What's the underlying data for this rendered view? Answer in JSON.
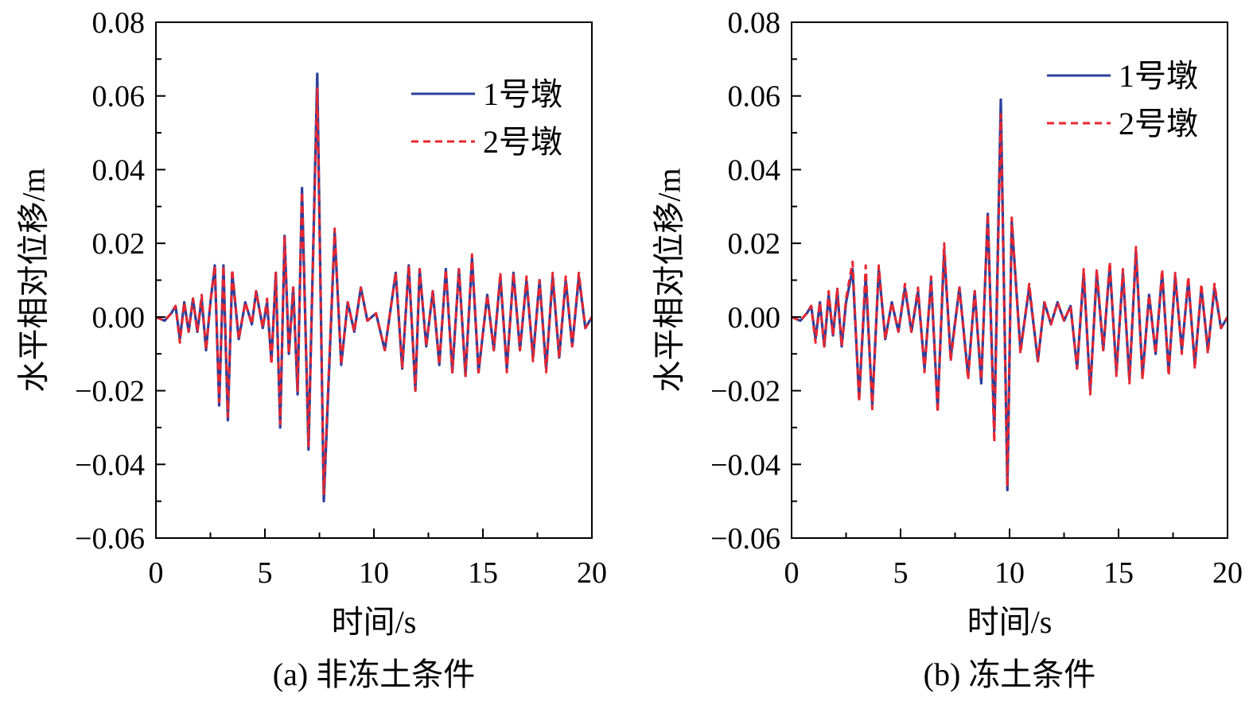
{
  "figure": {
    "series_colors": {
      "pier1": "#2b3f9c",
      "pier2": "#e8262f"
    }
  },
  "chart_data": [
    {
      "type": "line",
      "caption": "(a) 非冻土条件",
      "xlabel": "时间/s",
      "ylabel": "水平相对位移/m",
      "xlim": [
        0,
        20
      ],
      "ylim": [
        -0.06,
        0.08
      ],
      "xticks": [
        0,
        5,
        10,
        15,
        20
      ],
      "xtick_labels": [
        "0",
        "5",
        "10",
        "15",
        "20"
      ],
      "yticks": [
        -0.06,
        -0.04,
        -0.02,
        0.0,
        0.02,
        0.04,
        0.06,
        0.08
      ],
      "ytick_labels": [
        "−0.06",
        "−0.04",
        "−0.02",
        "0.00",
        "0.02",
        "0.04",
        "0.06",
        "0.08"
      ],
      "legend": {
        "position": "top-right",
        "entries": [
          "1号墩",
          "2号墩"
        ]
      },
      "series": [
        {
          "name": "1号墩",
          "style": "solid",
          "color": "#2b3f9c",
          "x": [
            0,
            0.4,
            0.7,
            0.9,
            1.1,
            1.3,
            1.5,
            1.7,
            1.9,
            2.1,
            2.3,
            2.5,
            2.7,
            2.9,
            3.1,
            3.3,
            3.5,
            3.8,
            4.1,
            4.4,
            4.6,
            4.9,
            5.1,
            5.3,
            5.5,
            5.7,
            5.9,
            6.1,
            6.3,
            6.5,
            6.7,
            7.0,
            7.4,
            7.7,
            8.2,
            8.5,
            8.8,
            9.1,
            9.4,
            9.7,
            10.1,
            10.5,
            11.0,
            11.3,
            11.6,
            11.9,
            12.1,
            12.4,
            12.7,
            13.0,
            13.3,
            13.6,
            13.9,
            14.2,
            14.5,
            14.8,
            15.2,
            15.5,
            15.8,
            16.1,
            16.4,
            16.7,
            17.0,
            17.3,
            17.6,
            17.9,
            18.2,
            18.5,
            18.8,
            19.1,
            19.4,
            19.7,
            20.0
          ],
          "y": [
            0,
            -0.001,
            0.001,
            0.003,
            -0.006,
            0.004,
            -0.004,
            0.005,
            -0.004,
            0.005,
            -0.009,
            0.004,
            0.014,
            -0.024,
            0.014,
            -0.028,
            0.012,
            -0.006,
            0.004,
            -0.002,
            0.007,
            -0.003,
            0.004,
            -0.012,
            0.012,
            -0.03,
            0.022,
            -0.01,
            0.008,
            -0.021,
            0.035,
            -0.036,
            0.066,
            -0.05,
            0.023,
            -0.013,
            0.004,
            -0.004,
            0.008,
            -0.001,
            0.001,
            -0.009,
            0.012,
            -0.014,
            0.014,
            -0.02,
            0.013,
            -0.008,
            0.007,
            -0.013,
            0.013,
            -0.015,
            0.013,
            -0.016,
            0.016,
            -0.015,
            0.006,
            -0.009,
            0.011,
            -0.014,
            0.012,
            -0.009,
            0.01,
            -0.011,
            0.01,
            -0.014,
            0.011,
            -0.011,
            0.01,
            -0.008,
            0.011,
            -0.003,
            0
          ],
          "peak_max": 0.066,
          "peak_min": -0.05
        },
        {
          "name": "2号墩",
          "style": "dashed",
          "color": "#e8262f",
          "x": [
            0,
            0.4,
            0.7,
            0.9,
            1.1,
            1.3,
            1.5,
            1.7,
            1.9,
            2.1,
            2.3,
            2.5,
            2.7,
            2.9,
            3.1,
            3.3,
            3.5,
            3.8,
            4.1,
            4.4,
            4.6,
            4.9,
            5.1,
            5.3,
            5.5,
            5.7,
            5.9,
            6.1,
            6.3,
            6.5,
            6.7,
            7.0,
            7.4,
            7.7,
            8.2,
            8.5,
            8.8,
            9.1,
            9.4,
            9.7,
            10.1,
            10.5,
            11.0,
            11.3,
            11.6,
            11.9,
            12.1,
            12.4,
            12.7,
            13.0,
            13.3,
            13.6,
            13.9,
            14.2,
            14.5,
            14.8,
            15.2,
            15.5,
            15.8,
            16.1,
            16.4,
            16.7,
            17.0,
            17.3,
            17.6,
            17.9,
            18.2,
            18.5,
            18.8,
            19.1,
            19.4,
            19.7,
            20.0
          ],
          "y": [
            0,
            -0.001,
            0.001,
            0.003,
            -0.007,
            0.004,
            -0.004,
            0.005,
            -0.004,
            0.006,
            -0.009,
            0.004,
            0.014,
            -0.023,
            0.014,
            -0.027,
            0.013,
            -0.006,
            0.004,
            -0.002,
            0.007,
            -0.003,
            0.005,
            -0.013,
            0.012,
            -0.029,
            0.022,
            -0.01,
            0.008,
            -0.02,
            0.034,
            -0.035,
            0.062,
            -0.048,
            0.024,
            -0.013,
            0.004,
            -0.004,
            0.008,
            -0.001,
            0.001,
            -0.009,
            0.012,
            -0.014,
            0.014,
            -0.02,
            0.013,
            -0.008,
            0.007,
            -0.013,
            0.013,
            -0.015,
            0.013,
            -0.016,
            0.017,
            -0.015,
            0.006,
            -0.009,
            0.012,
            -0.015,
            0.012,
            -0.009,
            0.011,
            -0.012,
            0.01,
            -0.015,
            0.012,
            -0.011,
            0.011,
            -0.008,
            0.012,
            -0.003,
            0
          ],
          "peak_max": 0.062,
          "peak_min": -0.048
        }
      ]
    },
    {
      "type": "line",
      "caption": "(b) 冻土条件",
      "xlabel": "时间/s",
      "ylabel": "水平相对位移/m",
      "xlim": [
        0,
        20
      ],
      "ylim": [
        -0.06,
        0.08
      ],
      "xticks": [
        0,
        5,
        10,
        15,
        20
      ],
      "xtick_labels": [
        "0",
        "5",
        "10",
        "15",
        "20"
      ],
      "yticks": [
        -0.06,
        -0.04,
        -0.02,
        0.0,
        0.02,
        0.04,
        0.06,
        0.08
      ],
      "ytick_labels": [
        "−0.06",
        "−0.04",
        "−0.02",
        "0.00",
        "0.02",
        "0.04",
        "0.06",
        "0.08"
      ],
      "legend": {
        "position": "top-right",
        "entries": [
          "1号墩",
          "2号墩"
        ]
      },
      "series": [
        {
          "name": "1号墩",
          "style": "solid",
          "color": "#2b3f9c",
          "x": [
            0,
            0.4,
            0.7,
            0.9,
            1.1,
            1.3,
            1.5,
            1.7,
            1.9,
            2.1,
            2.3,
            2.5,
            2.8,
            3.1,
            3.4,
            3.7,
            4.0,
            4.3,
            4.6,
            4.9,
            5.2,
            5.5,
            5.8,
            6.1,
            6.4,
            6.7,
            7.0,
            7.3,
            7.7,
            8.1,
            8.4,
            8.7,
            9.0,
            9.3,
            9.6,
            9.9,
            10.1,
            10.5,
            10.9,
            11.3,
            11.6,
            11.9,
            12.2,
            12.5,
            12.8,
            13.1,
            13.4,
            13.7,
            14.0,
            14.3,
            14.6,
            14.9,
            15.2,
            15.5,
            15.8,
            16.1,
            16.4,
            16.7,
            17.0,
            17.3,
            17.6,
            17.9,
            18.2,
            18.5,
            18.8,
            19.1,
            19.4,
            19.7,
            20.0
          ],
          "y": [
            0,
            -0.001,
            0.001,
            0.003,
            -0.006,
            0.004,
            -0.008,
            0.006,
            -0.005,
            0.007,
            -0.008,
            0.004,
            0.013,
            -0.022,
            0.011,
            -0.024,
            0.013,
            -0.006,
            0.004,
            -0.004,
            0.008,
            -0.004,
            0.007,
            -0.014,
            0.01,
            -0.025,
            0.018,
            -0.011,
            0.008,
            -0.016,
            0.007,
            -0.018,
            0.028,
            -0.031,
            0.059,
            -0.047,
            0.026,
            -0.009,
            0.008,
            -0.012,
            0.004,
            -0.002,
            0.004,
            -0.001,
            0.003,
            -0.014,
            0.012,
            -0.02,
            0.012,
            -0.009,
            0.014,
            -0.015,
            0.012,
            -0.017,
            0.018,
            -0.016,
            0.006,
            -0.01,
            0.012,
            -0.015,
            0.011,
            -0.009,
            0.01,
            -0.013,
            0.008,
            -0.009,
            0.008,
            -0.003,
            0
          ],
          "peak_max": 0.059,
          "peak_min": -0.047
        },
        {
          "name": "2号墩",
          "style": "dashed",
          "color": "#e8262f",
          "x": [
            0,
            0.4,
            0.7,
            0.9,
            1.1,
            1.3,
            1.5,
            1.7,
            1.9,
            2.1,
            2.3,
            2.5,
            2.8,
            3.1,
            3.4,
            3.7,
            4.0,
            4.3,
            4.6,
            4.9,
            5.2,
            5.5,
            5.8,
            6.1,
            6.4,
            6.7,
            7.0,
            7.3,
            7.7,
            8.1,
            8.4,
            8.7,
            9.0,
            9.3,
            9.6,
            9.9,
            10.1,
            10.5,
            10.9,
            11.3,
            11.6,
            11.9,
            12.2,
            12.5,
            12.8,
            13.1,
            13.4,
            13.7,
            14.0,
            14.3,
            14.6,
            14.9,
            15.2,
            15.5,
            15.8,
            16.1,
            16.4,
            16.7,
            17.0,
            17.3,
            17.6,
            17.9,
            18.2,
            18.5,
            18.8,
            19.1,
            19.4,
            19.7,
            20.0
          ],
          "y": [
            0,
            -0.001,
            0.001,
            0.003,
            -0.007,
            0.004,
            -0.008,
            0.007,
            -0.005,
            0.008,
            -0.008,
            0.005,
            0.015,
            -0.023,
            0.014,
            -0.025,
            0.014,
            -0.006,
            0.004,
            -0.004,
            0.009,
            -0.004,
            0.008,
            -0.015,
            0.011,
            -0.026,
            0.02,
            -0.012,
            0.008,
            -0.017,
            0.007,
            -0.017,
            0.028,
            -0.034,
            0.055,
            -0.046,
            0.027,
            -0.01,
            0.009,
            -0.012,
            0.004,
            -0.002,
            0.004,
            -0.001,
            0.003,
            -0.014,
            0.013,
            -0.021,
            0.013,
            -0.009,
            0.015,
            -0.016,
            0.013,
            -0.018,
            0.019,
            -0.017,
            0.006,
            -0.01,
            0.013,
            -0.016,
            0.012,
            -0.01,
            0.011,
            -0.014,
            0.009,
            -0.01,
            0.009,
            -0.003,
            0
          ],
          "peak_max": 0.055,
          "peak_min": -0.046
        }
      ]
    }
  ]
}
